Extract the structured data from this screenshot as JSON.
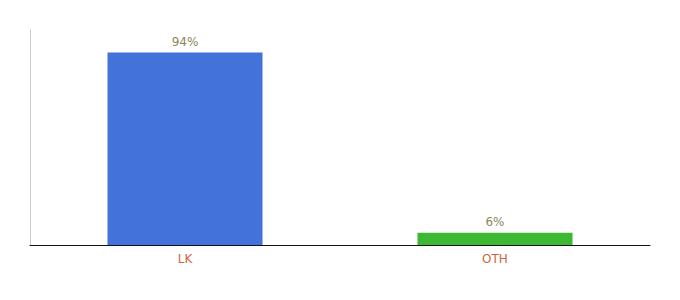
{
  "chart_data": {
    "type": "bar",
    "categories": [
      "LK",
      "OTH"
    ],
    "values": [
      94,
      6
    ],
    "value_labels": [
      "94%",
      "6%"
    ],
    "colors": [
      "#4472db",
      "#3cb832"
    ],
    "data_labels": true,
    "ylim": [
      0,
      105
    ],
    "tick_labels": "x",
    "grid": false
  }
}
